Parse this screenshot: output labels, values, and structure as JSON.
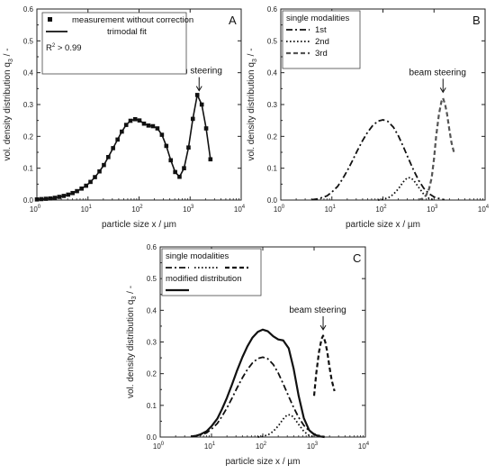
{
  "chart_data": [
    {
      "type": "line",
      "panel": "A",
      "xlabel": "particle size x / µm",
      "ylabel": "vol. density distribution q3 / -",
      "ylabel_main": "vol. density distribution q",
      "ylabel_sub": "3",
      "ylabel_tail": " / -",
      "xscale": "log",
      "xlim": [
        1,
        10000
      ],
      "ylim": [
        0,
        0.6
      ],
      "yticks": [
        "0.0",
        "0.1",
        "0.2",
        "0.3",
        "0.4",
        "0.5",
        "0.6"
      ],
      "xtick_exps": [
        "0",
        "1",
        "2",
        "3",
        "4"
      ],
      "xtick_base": "10",
      "legend_position": "top-left",
      "legend": [
        {
          "label": "measurement without correction",
          "style": "square-marker"
        },
        {
          "label": "trimodal fit",
          "style": "solid"
        }
      ],
      "r2_main": "R",
      "r2_sup": "2",
      "r2_tail": " > 0.99",
      "annotation": "beam steering",
      "annotation_x": 1500,
      "annotation_y": 0.335,
      "series": [
        {
          "style": "solid-markers",
          "x": [
            1,
            1.22,
            1.5,
            1.83,
            2.24,
            2.74,
            3.35,
            4.1,
            5,
            6.1,
            7.5,
            9.2,
            11.2,
            13.7,
            16.8,
            20.5,
            25,
            31,
            38,
            46,
            56,
            68,
            84,
            102,
            125,
            153,
            187,
            229,
            280,
            342,
            418,
            510,
            620,
            760,
            930,
            1130,
            1380,
            1690,
            2060,
            2500
          ],
          "y": [
            0.002,
            0.003,
            0.004,
            0.005,
            0.007,
            0.01,
            0.013,
            0.017,
            0.022,
            0.028,
            0.036,
            0.045,
            0.057,
            0.072,
            0.09,
            0.11,
            0.135,
            0.163,
            0.19,
            0.215,
            0.236,
            0.249,
            0.254,
            0.25,
            0.24,
            0.234,
            0.232,
            0.225,
            0.205,
            0.17,
            0.125,
            0.088,
            0.073,
            0.1,
            0.165,
            0.255,
            0.33,
            0.3,
            0.225,
            0.128
          ]
        }
      ]
    },
    {
      "type": "line",
      "panel": "B",
      "xlabel": "particle size x / µm",
      "ylabel": "vol. density distribution q3 / -",
      "xscale": "log",
      "xlim": [
        1,
        10000
      ],
      "ylim": [
        0,
        0.6
      ],
      "legend_position": "top-left",
      "legend_title": "single modalities",
      "legend": [
        {
          "label": "1st",
          "style": "dash-dot"
        },
        {
          "label": "2nd",
          "style": "dotted"
        },
        {
          "label": "3rd",
          "style": "dashed-gray"
        }
      ],
      "annotation": "beam steering",
      "annotation_x": 1500,
      "annotation_y": 0.33,
      "series": [
        {
          "style": "dash-dot",
          "x": [
            4,
            5,
            6,
            8,
            10,
            13,
            16,
            20,
            25,
            31,
            40,
            50,
            63,
            80,
            100,
            125,
            160,
            200,
            250,
            320,
            400,
            500,
            630,
            800,
            1000,
            1300,
            1600
          ],
          "y": [
            0.001,
            0.003,
            0.006,
            0.013,
            0.025,
            0.043,
            0.065,
            0.092,
            0.122,
            0.153,
            0.187,
            0.213,
            0.234,
            0.248,
            0.252,
            0.247,
            0.229,
            0.202,
            0.168,
            0.128,
            0.093,
            0.062,
            0.037,
            0.02,
            0.01,
            0.004,
            0.001
          ]
        },
        {
          "style": "dotted",
          "x": [
            80,
            100,
            130,
            160,
            200,
            250,
            300,
            350,
            400,
            500,
            630,
            800,
            1000
          ],
          "y": [
            0.0,
            0.002,
            0.008,
            0.018,
            0.035,
            0.057,
            0.07,
            0.07,
            0.062,
            0.04,
            0.018,
            0.005,
            0.0
          ]
        },
        {
          "style": "dashed-gray",
          "x": [
            500,
            600,
            700,
            800,
            900,
            1000,
            1100,
            1250,
            1400,
            1500,
            1650,
            1800,
            2000,
            2200,
            2500
          ],
          "y": [
            0.0,
            0.005,
            0.015,
            0.035,
            0.07,
            0.13,
            0.2,
            0.27,
            0.31,
            0.32,
            0.3,
            0.27,
            0.22,
            0.18,
            0.145
          ]
        }
      ]
    },
    {
      "type": "line",
      "panel": "C",
      "xlabel": "particle size x / µm",
      "ylabel": "vol. density distribution q3 / -",
      "xscale": "log",
      "xlim": [
        1,
        10000
      ],
      "ylim": [
        0,
        0.6
      ],
      "legend_position": "top-left",
      "legend_title": "single modalities",
      "legend_title2": "modified distribution",
      "legend": [
        {
          "label": "",
          "style": "dash-dot"
        },
        {
          "label": "",
          "style": "dotted"
        },
        {
          "label": "",
          "style": "dashed"
        },
        {
          "label": "",
          "style": "solid-thick"
        }
      ],
      "annotation": "beam steering",
      "annotation_x": 1500,
      "annotation_y": 0.33,
      "series": [
        {
          "style": "dash-dot",
          "x": [
            4,
            5,
            6,
            8,
            10,
            13,
            16,
            20,
            25,
            31,
            40,
            50,
            63,
            80,
            100,
            125,
            160,
            200,
            250,
            320,
            400,
            500,
            630,
            800,
            1000,
            1300,
            1600
          ],
          "y": [
            0.001,
            0.003,
            0.006,
            0.013,
            0.025,
            0.043,
            0.065,
            0.092,
            0.122,
            0.153,
            0.187,
            0.213,
            0.234,
            0.248,
            0.252,
            0.247,
            0.229,
            0.202,
            0.168,
            0.128,
            0.093,
            0.062,
            0.037,
            0.02,
            0.01,
            0.004,
            0.001
          ]
        },
        {
          "style": "dotted",
          "x": [
            80,
            100,
            130,
            160,
            200,
            250,
            300,
            350,
            400,
            500,
            630,
            800,
            1000
          ],
          "y": [
            0.0,
            0.002,
            0.008,
            0.018,
            0.035,
            0.057,
            0.07,
            0.07,
            0.062,
            0.04,
            0.018,
            0.005,
            0.0
          ]
        },
        {
          "style": "dashed",
          "x": [
            1000,
            1100,
            1250,
            1400,
            1500,
            1650,
            1800,
            2000,
            2200,
            2500
          ],
          "y": [
            0.13,
            0.2,
            0.27,
            0.31,
            0.32,
            0.3,
            0.27,
            0.22,
            0.18,
            0.145
          ]
        },
        {
          "style": "solid-thick",
          "x": [
            4,
            5,
            6,
            8,
            10,
            13,
            16,
            20,
            25,
            31,
            40,
            50,
            63,
            80,
            100,
            125,
            160,
            200,
            250,
            320,
            400,
            500,
            630,
            800,
            1000,
            1300,
            1600
          ],
          "y": [
            0.002,
            0.004,
            0.008,
            0.018,
            0.034,
            0.058,
            0.088,
            0.124,
            0.165,
            0.207,
            0.252,
            0.286,
            0.314,
            0.332,
            0.339,
            0.334,
            0.318,
            0.308,
            0.305,
            0.28,
            0.215,
            0.13,
            0.06,
            0.022,
            0.008,
            0.002,
            0.0
          ]
        }
      ]
    }
  ]
}
